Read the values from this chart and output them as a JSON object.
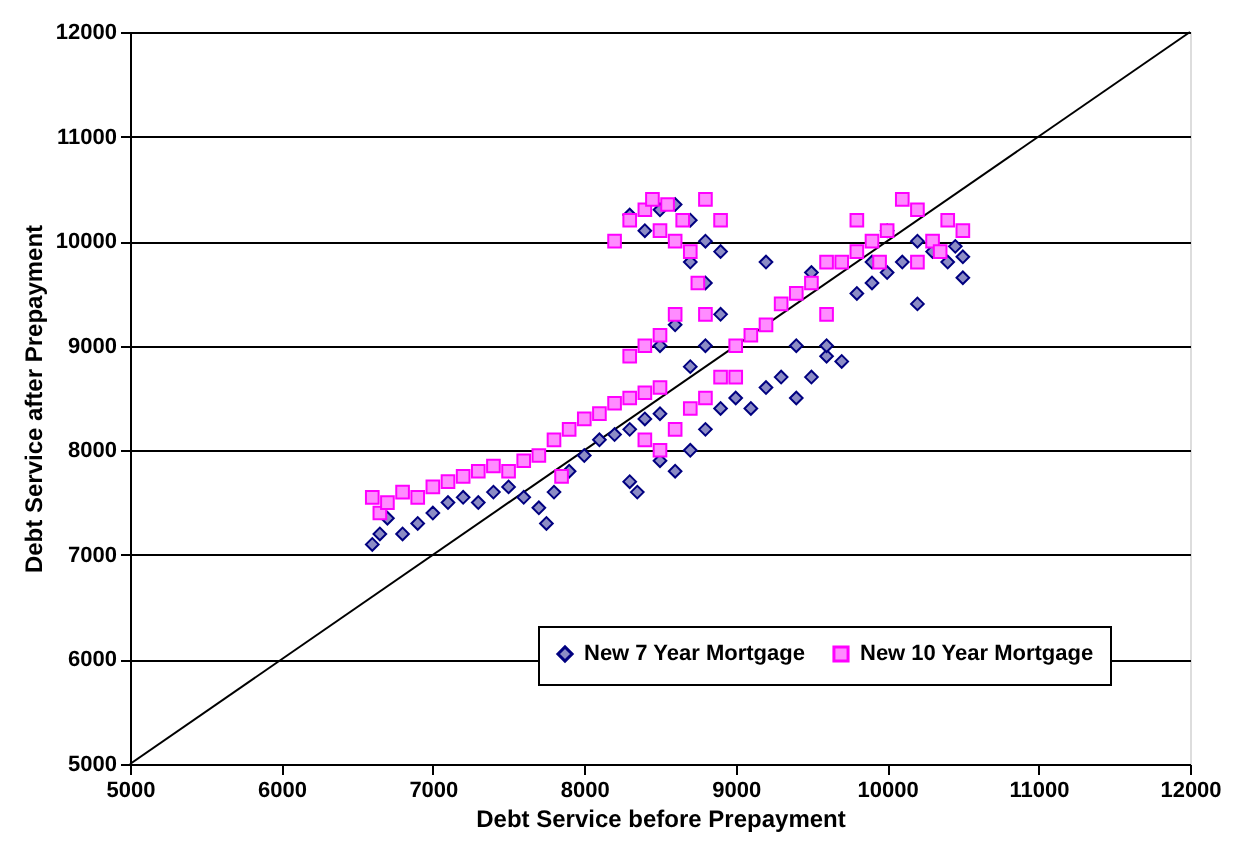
{
  "chart_data": {
    "type": "scatter",
    "xlabel": "Debt Service before Prepayment",
    "ylabel": "Debt Service after Prepayment",
    "xlim": [
      5000,
      12000
    ],
    "xticks": [
      5000,
      6000,
      7000,
      8000,
      9000,
      10000,
      11000,
      12000
    ],
    "ylim": [
      5000,
      12000
    ],
    "yticks": [
      5000,
      6000,
      7000,
      8000,
      9000,
      10000,
      11000,
      12000
    ],
    "grid": "y",
    "legend": "bottom right",
    "series": [
      {
        "name": "New 7 Year Mortgage",
        "color": "#000080",
        "marker": "diamond",
        "x": [
          6600,
          6650,
          6700,
          6800,
          6900,
          7000,
          7100,
          7200,
          7300,
          7400,
          7500,
          7600,
          7700,
          7750,
          7800,
          7900,
          8000,
          8100,
          8200,
          8300,
          8400,
          8500,
          8300,
          8350,
          8500,
          8600,
          8700,
          8800,
          8900,
          9000,
          9100,
          9200,
          9300,
          9400,
          9500,
          9600,
          9700,
          9400,
          9200,
          9500,
          9600,
          8300,
          8400,
          8500,
          8600,
          8700,
          8800,
          8900,
          8700,
          8800,
          8600,
          8500,
          8700,
          8800,
          8900,
          9800,
          9900,
          10000,
          10100,
          10200,
          10300,
          10400,
          10500,
          10500,
          10450,
          10200,
          10000,
          9900
        ],
        "values": [
          7100,
          7200,
          7350,
          7200,
          7300,
          7400,
          7500,
          7550,
          7500,
          7600,
          7650,
          7550,
          7450,
          7300,
          7600,
          7800,
          7950,
          8100,
          8150,
          8200,
          8300,
          8350,
          7700,
          7600,
          7900,
          7800,
          8000,
          8200,
          8400,
          8500,
          8400,
          8600,
          8700,
          8500,
          8700,
          8900,
          8850,
          9000,
          9800,
          9700,
          9000,
          10250,
          10100,
          10300,
          10350,
          10200,
          10000,
          9900,
          9800,
          9600,
          9200,
          9000,
          8800,
          9000,
          9300,
          9500,
          9600,
          9700,
          9800,
          9400,
          9900,
          9800,
          9650,
          9850,
          9950,
          10000,
          10100,
          9800
        ]
      },
      {
        "name": "New 10 Year Mortgage",
        "color": "#ff00ff",
        "marker": "square",
        "x": [
          6600,
          6650,
          6700,
          6800,
          6900,
          7000,
          7100,
          7200,
          7300,
          7400,
          7500,
          7600,
          7700,
          7800,
          7850,
          7900,
          8000,
          8100,
          8200,
          8300,
          8400,
          8500,
          8300,
          8400,
          8500,
          8600,
          8400,
          8500,
          8600,
          8700,
          8800,
          8900,
          9000,
          9100,
          9200,
          9000,
          9300,
          9400,
          9500,
          9600,
          9700,
          9600,
          9800,
          8200,
          8300,
          8400,
          8450,
          8500,
          8550,
          8600,
          8650,
          8700,
          8750,
          8800,
          8800,
          8900,
          9800,
          9900,
          10000,
          10100,
          10200,
          10300,
          10400,
          10500,
          10200,
          10350,
          9950
        ],
        "values": [
          7550,
          7400,
          7500,
          7600,
          7550,
          7650,
          7700,
          7750,
          7800,
          7850,
          7800,
          7900,
          7950,
          8100,
          7750,
          8200,
          8300,
          8350,
          8450,
          8500,
          8550,
          8600,
          8900,
          9000,
          9100,
          9300,
          8100,
          8000,
          8200,
          8400,
          8500,
          8700,
          9000,
          9100,
          9200,
          8700,
          9400,
          9500,
          9600,
          9300,
          9800,
          9800,
          9900,
          10000,
          10200,
          10300,
          10400,
          10100,
          10350,
          10000,
          10200,
          9900,
          9600,
          10400,
          9300,
          10200,
          10200,
          10000,
          10100,
          10400,
          10300,
          10000,
          10200,
          10100,
          9800,
          9900,
          9800
        ]
      },
      {
        "type": "line",
        "color": "#000000",
        "x": [
          5000,
          12000
        ],
        "values": [
          5000,
          12000
        ]
      }
    ]
  }
}
